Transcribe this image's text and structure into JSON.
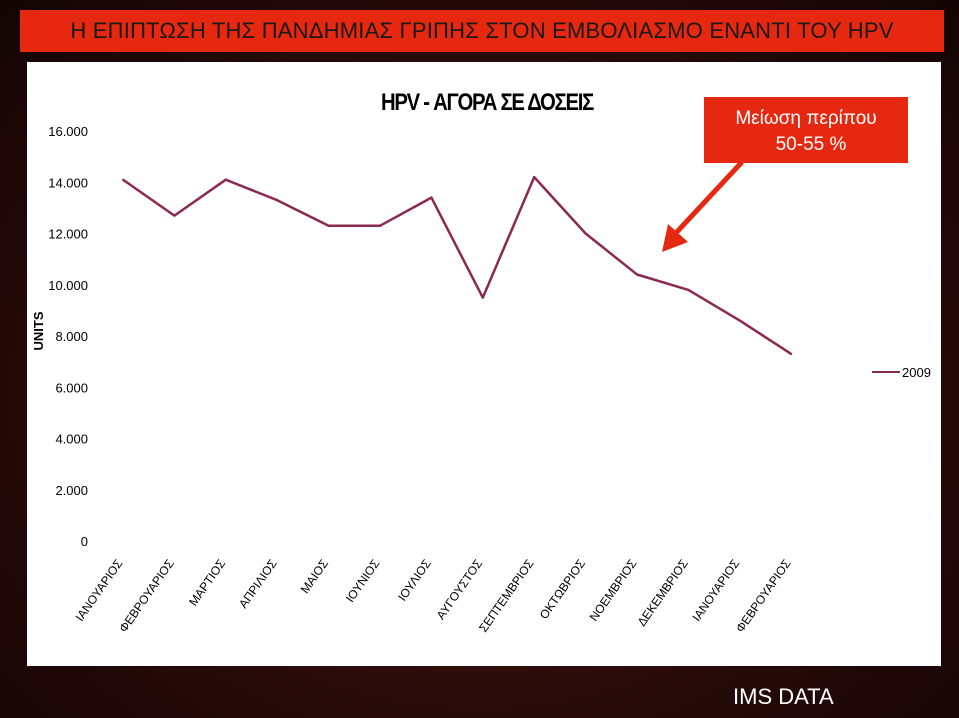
{
  "slide": {
    "title": "Η ΕΠΙΠΤΩΣΗ ΤΗΣ ΠΑΝΔΗΜΙΑΣ ΓΡΙΠΗΣ ΣΤΟΝ ΕΜΒΟΛΙΑΣΜΟ ΕΝΑΝΤΙ ΤΟΥ HPV",
    "annotation_line1": "Μείωση περίπου",
    "annotation_line2": "50-55 %",
    "source": "IMS DATA"
  },
  "colors": {
    "title_bg": "#e62810",
    "annotation_bg": "#e62810",
    "series_line": "#8b2a4e",
    "arrow": "#e62810"
  },
  "chart_data": {
    "type": "line",
    "title": "HPV - ΑΓΟΡΑ ΣΕ ΔΟΣΕΙΣ",
    "xlabel": "",
    "ylabel": "UNITS",
    "categories": [
      "ΙΑΝΟΥΑΡΙΟΣ",
      "ΦΕΒΡΟΥΑΡΙΟΣ",
      "ΜΑΡΤΙΟΣ",
      "ΑΠΡΙΛΙΟΣ",
      "ΜΑΙΟΣ",
      "ΙΟΥΝΙΟΣ",
      "ΙΟΥΛΙΟΣ",
      "ΑΥΓΟΥΣΤΟΣ",
      "ΣΕΠΤΕΜΒΡΙΟΣ",
      "ΟΚΤΩΒΡΙΟΣ",
      "ΝΟΕΜΒΡΙΟΣ",
      "ΔΕΚΕΜΒΡΙΟΣ",
      "ΙΑΝΟΥΑΡΙΟΣ",
      "ΦΕΒΡΟΥΑΡΙΟΣ"
    ],
    "series": [
      {
        "name": "2009",
        "values": [
          14100,
          12700,
          14100,
          13300,
          12300,
          12300,
          13400,
          9500,
          14200,
          12000,
          10400,
          9800,
          8600,
          7300
        ]
      }
    ],
    "ylim": [
      0,
      16000
    ],
    "yticks": [
      0,
      2000,
      4000,
      6000,
      8000,
      10000,
      12000,
      14000,
      16000
    ],
    "ytick_labels": [
      "0",
      "2.000",
      "4.000",
      "6.000",
      "8.000",
      "10.000",
      "12.000",
      "14.000",
      "16.000"
    ],
    "grid": false,
    "legend": "right"
  }
}
